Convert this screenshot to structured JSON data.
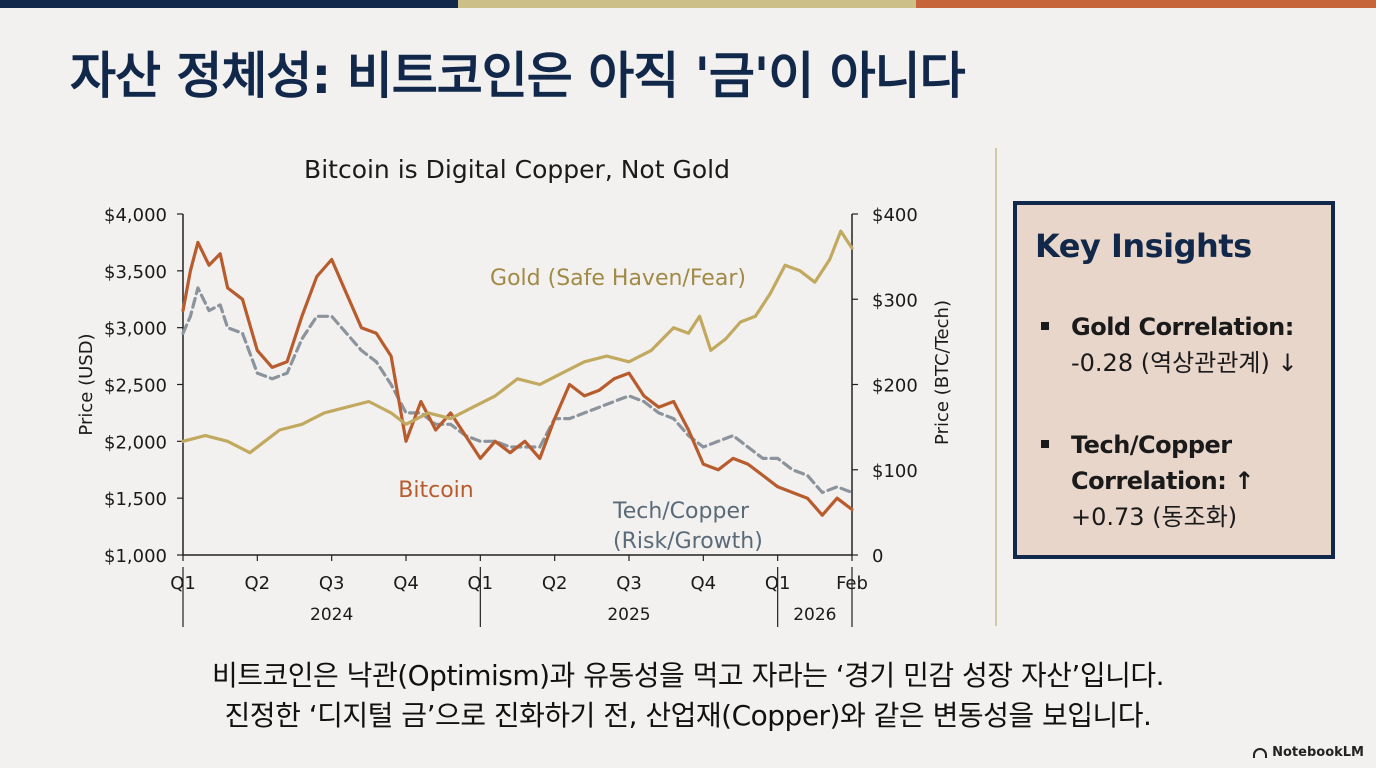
{
  "colors": {
    "topbar": [
      "#12284a",
      "#cdbf88",
      "#c7653a"
    ],
    "bitcoin": "#b85c2e",
    "gold": "#c2a960",
    "tech": "#8b949c",
    "navy": "#12284a"
  },
  "slide": {
    "title": "자산 정체성: 비트코인은 아직 '금'이 아니다"
  },
  "chart_data": {
    "type": "line",
    "title": "Bitcoin is Digital Copper, Not Gold",
    "ylabel_left": "Price (USD)",
    "ylabel_right": "Price (BTC/Tech)",
    "ylim_left": [
      1000,
      4000
    ],
    "ylim_right": [
      0,
      400
    ],
    "yticks_left": [
      "$4,000",
      "$3,500",
      "$3,000",
      "$2,500",
      "$2,000",
      "$1,500",
      "$1,000"
    ],
    "yticks_right": [
      "$400",
      "$300",
      "$200",
      "$100",
      "0"
    ],
    "x_ticks": [
      "Q1",
      "Q2",
      "Q3",
      "Q4",
      "Q1",
      "Q2",
      "Q3",
      "Q4",
      "Q1",
      "Feb"
    ],
    "years": [
      "2024",
      "2025",
      "2026"
    ],
    "x_range": [
      0,
      9
    ],
    "series": [
      {
        "name": "Bitcoin",
        "axis": "left",
        "x": [
          0,
          0.1,
          0.2,
          0.35,
          0.5,
          0.6,
          0.8,
          1.0,
          1.2,
          1.4,
          1.6,
          1.8,
          2.0,
          2.2,
          2.4,
          2.6,
          2.8,
          3.0,
          3.2,
          3.4,
          3.6,
          3.8,
          4.0,
          4.2,
          4.4,
          4.6,
          4.8,
          5.0,
          5.2,
          5.4,
          5.6,
          5.8,
          6.0,
          6.2,
          6.4,
          6.6,
          6.8,
          7.0,
          7.2,
          7.4,
          7.6,
          7.8,
          8.0,
          8.2,
          8.4,
          8.6,
          8.8,
          9.0
        ],
        "values": [
          3150,
          3500,
          3750,
          3550,
          3650,
          3350,
          3250,
          2800,
          2650,
          2700,
          3100,
          3450,
          3600,
          3300,
          3000,
          2950,
          2750,
          2000,
          2350,
          2100,
          2250,
          2050,
          1850,
          2000,
          1900,
          2000,
          1850,
          2200,
          2500,
          2400,
          2450,
          2550,
          2600,
          2400,
          2300,
          2350,
          2100,
          1800,
          1750,
          1850,
          1800,
          1700,
          1600,
          1550,
          1500,
          1350,
          1500,
          1400
        ]
      },
      {
        "name": "Tech/Copper (Risk/Growth)",
        "axis": "left",
        "x": [
          0,
          0.1,
          0.2,
          0.35,
          0.5,
          0.6,
          0.8,
          1.0,
          1.2,
          1.4,
          1.6,
          1.8,
          2.0,
          2.2,
          2.4,
          2.6,
          2.8,
          3.0,
          3.2,
          3.4,
          3.6,
          3.8,
          4.0,
          4.2,
          4.4,
          4.6,
          4.8,
          5.0,
          5.2,
          5.4,
          5.6,
          5.8,
          6.0,
          6.2,
          6.4,
          6.6,
          6.8,
          7.0,
          7.2,
          7.4,
          7.6,
          7.8,
          8.0,
          8.2,
          8.4,
          8.6,
          8.8,
          9.0
        ],
        "values": [
          2950,
          3100,
          3350,
          3150,
          3200,
          3000,
          2950,
          2600,
          2550,
          2600,
          2900,
          3100,
          3100,
          2950,
          2800,
          2700,
          2500,
          2250,
          2250,
          2150,
          2150,
          2050,
          2000,
          2000,
          1950,
          1950,
          1950,
          2200,
          2200,
          2250,
          2300,
          2350,
          2400,
          2350,
          2250,
          2200,
          2050,
          1950,
          2000,
          2050,
          1950,
          1850,
          1850,
          1750,
          1700,
          1550,
          1600,
          1550
        ]
      },
      {
        "name": "Gold (Safe Haven/Fear)",
        "axis": "left",
        "x": [
          0,
          0.3,
          0.6,
          0.9,
          1.1,
          1.3,
          1.6,
          1.9,
          2.2,
          2.5,
          2.8,
          3.0,
          3.3,
          3.6,
          3.9,
          4.2,
          4.5,
          4.8,
          5.1,
          5.4,
          5.7,
          6.0,
          6.3,
          6.6,
          6.8,
          6.95,
          7.1,
          7.3,
          7.5,
          7.7,
          7.9,
          8.1,
          8.3,
          8.5,
          8.7,
          8.85,
          9.0
        ],
        "values": [
          2000,
          2050,
          2000,
          1900,
          2000,
          2100,
          2150,
          2250,
          2300,
          2350,
          2250,
          2150,
          2250,
          2200,
          2300,
          2400,
          2550,
          2500,
          2600,
          2700,
          2750,
          2700,
          2800,
          3000,
          2950,
          3100,
          2800,
          2900,
          3050,
          3100,
          3300,
          3550,
          3500,
          3400,
          3600,
          3850,
          3700
        ]
      }
    ],
    "annotations": {
      "gold": "Gold (Safe Haven/Fear)",
      "bitcoin": "Bitcoin",
      "tech_line1": "Tech/Copper",
      "tech_line2": "(Risk/Growth)"
    }
  },
  "insights": {
    "heading": "Key Insights",
    "items": [
      {
        "label": "Gold Correlation:",
        "value": "-0.28 (역상관관계) ↓"
      },
      {
        "label": "Tech/Copper Correlation: ↑",
        "value": "+0.73 (동조화)"
      }
    ]
  },
  "caption": {
    "line1": "비트코인은 낙관(Optimism)과 유동성을 먹고 자라는 ‘경기 민감 성장 자산’입니다.",
    "line2": "진정한 ‘디지털 금’으로 진화하기 전, 산업재(Copper)와 같은 변동성을 보입니다."
  },
  "brand": "NotebookLM"
}
